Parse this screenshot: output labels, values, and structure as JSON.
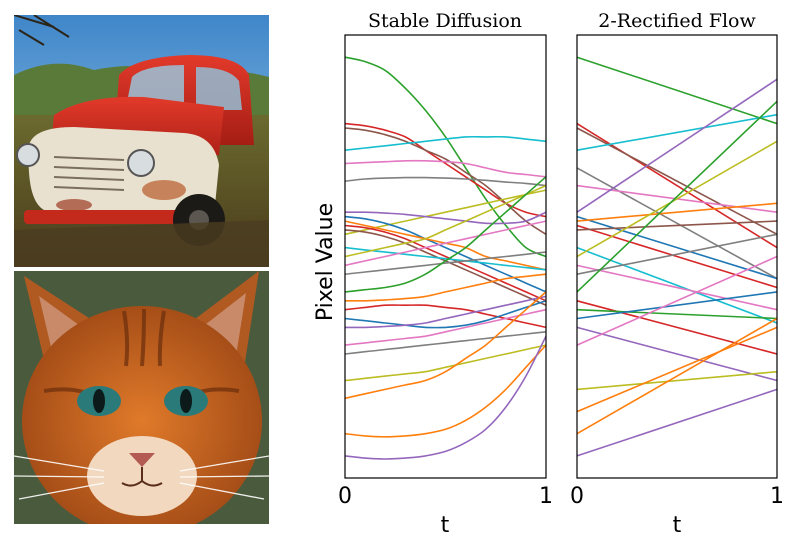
{
  "images": [
    {
      "subject": "red-truck-photo"
    },
    {
      "subject": "orange-cat-photo"
    }
  ],
  "chart_data": [
    {
      "type": "line",
      "title": "Stable Diffusion",
      "xlabel": "t",
      "ylabel": "Pixel Value",
      "xlim": [
        0,
        1
      ],
      "xticks": [
        "0",
        "1"
      ],
      "ylim": [
        0,
        1
      ],
      "grid": false,
      "x": [
        0,
        0.1,
        0.2,
        0.3,
        0.4,
        0.5,
        0.6,
        0.7,
        0.8,
        0.9,
        1
      ],
      "series": [
        {
          "color": "#2ca02c",
          "values": [
            0.95,
            0.94,
            0.92,
            0.88,
            0.83,
            0.77,
            0.7,
            0.63,
            0.57,
            0.52,
            0.5
          ]
        },
        {
          "color": "#d62728",
          "values": [
            0.8,
            0.795,
            0.785,
            0.77,
            0.74,
            0.71,
            0.68,
            0.65,
            0.62,
            0.6,
            0.59
          ]
        },
        {
          "color": "#8c564b",
          "values": [
            0.79,
            0.785,
            0.775,
            0.76,
            0.74,
            0.72,
            0.69,
            0.66,
            0.62,
            0.58,
            0.55
          ]
        },
        {
          "color": "#17becf",
          "values": [
            0.74,
            0.745,
            0.75,
            0.755,
            0.76,
            0.765,
            0.77,
            0.77,
            0.77,
            0.765,
            0.76
          ]
        },
        {
          "color": "#e377c2",
          "values": [
            0.71,
            0.712,
            0.714,
            0.716,
            0.716,
            0.714,
            0.71,
            0.7,
            0.69,
            0.685,
            0.68
          ]
        },
        {
          "color": "#7f7f7f",
          "values": [
            0.67,
            0.675,
            0.677,
            0.678,
            0.678,
            0.677,
            0.675,
            0.672,
            0.668,
            0.665,
            0.66
          ]
        },
        {
          "color": "#bcbd22",
          "values": [
            0.55,
            0.56,
            0.57,
            0.58,
            0.59,
            0.6,
            0.61,
            0.62,
            0.63,
            0.64,
            0.65
          ]
        },
        {
          "color": "#9467bd",
          "values": [
            0.6,
            0.6,
            0.598,
            0.595,
            0.59,
            0.585,
            0.58,
            0.575,
            0.575,
            0.58,
            0.6
          ]
        },
        {
          "color": "#1f77b4",
          "values": [
            0.59,
            0.585,
            0.575,
            0.56,
            0.54,
            0.52,
            0.5,
            0.48,
            0.46,
            0.44,
            0.42
          ]
        },
        {
          "color": "#ff7f0e",
          "values": [
            0.58,
            0.57,
            0.56,
            0.55,
            0.54,
            0.53,
            0.52,
            0.5,
            0.49,
            0.48,
            0.47
          ]
        },
        {
          "color": "#d62728",
          "values": [
            0.57,
            0.565,
            0.555,
            0.54,
            0.52,
            0.5,
            0.48,
            0.46,
            0.44,
            0.42,
            0.4
          ]
        },
        {
          "color": "#8c564b",
          "values": [
            0.56,
            0.555,
            0.545,
            0.53,
            0.51,
            0.49,
            0.47,
            0.45,
            0.43,
            0.41,
            0.39
          ]
        },
        {
          "color": "#17becf",
          "values": [
            0.52,
            0.515,
            0.51,
            0.505,
            0.5,
            0.495,
            0.49,
            0.485,
            0.48,
            0.475,
            0.47
          ]
        },
        {
          "color": "#bcbd22",
          "values": [
            0.5,
            0.51,
            0.52,
            0.53,
            0.54,
            0.56,
            0.58,
            0.6,
            0.62,
            0.64,
            0.66
          ]
        },
        {
          "color": "#e377c2",
          "values": [
            0.48,
            0.49,
            0.5,
            0.51,
            0.52,
            0.53,
            0.54,
            0.55,
            0.56,
            0.57,
            0.58
          ]
        },
        {
          "color": "#7f7f7f",
          "values": [
            0.46,
            0.465,
            0.47,
            0.475,
            0.48,
            0.485,
            0.49,
            0.495,
            0.5,
            0.505,
            0.51
          ]
        },
        {
          "color": "#2ca02c",
          "values": [
            0.42,
            0.425,
            0.43,
            0.44,
            0.46,
            0.49,
            0.52,
            0.56,
            0.6,
            0.64,
            0.68
          ]
        },
        {
          "color": "#ff7f0e",
          "values": [
            0.4,
            0.4,
            0.402,
            0.405,
            0.41,
            0.42,
            0.43,
            0.44,
            0.45,
            0.455,
            0.46
          ]
        },
        {
          "color": "#d62728",
          "values": [
            0.38,
            0.385,
            0.39,
            0.39,
            0.39,
            0.385,
            0.38,
            0.37,
            0.36,
            0.35,
            0.34
          ]
        },
        {
          "color": "#1f77b4",
          "values": [
            0.36,
            0.355,
            0.35,
            0.345,
            0.34,
            0.34,
            0.345,
            0.355,
            0.37,
            0.385,
            0.4
          ]
        },
        {
          "color": "#9467bd",
          "values": [
            0.34,
            0.34,
            0.342,
            0.345,
            0.35,
            0.36,
            0.37,
            0.38,
            0.39,
            0.4,
            0.41
          ]
        },
        {
          "color": "#e377c2",
          "values": [
            0.3,
            0.305,
            0.31,
            0.315,
            0.32,
            0.33,
            0.34,
            0.35,
            0.36,
            0.37,
            0.38
          ]
        },
        {
          "color": "#7f7f7f",
          "values": [
            0.28,
            0.285,
            0.29,
            0.295,
            0.3,
            0.305,
            0.31,
            0.315,
            0.32,
            0.325,
            0.33
          ]
        },
        {
          "color": "#bcbd22",
          "values": [
            0.22,
            0.225,
            0.23,
            0.235,
            0.24,
            0.25,
            0.26,
            0.27,
            0.28,
            0.29,
            0.3
          ]
        },
        {
          "color": "#ff7f0e",
          "values": [
            0.18,
            0.19,
            0.2,
            0.21,
            0.22,
            0.24,
            0.27,
            0.3,
            0.34,
            0.38,
            0.42
          ]
        },
        {
          "color": "#ff7f0e",
          "values": [
            0.1,
            0.095,
            0.093,
            0.095,
            0.1,
            0.11,
            0.13,
            0.16,
            0.2,
            0.25,
            0.3
          ]
        },
        {
          "color": "#9467bd",
          "values": [
            0.05,
            0.045,
            0.043,
            0.045,
            0.05,
            0.06,
            0.08,
            0.11,
            0.16,
            0.23,
            0.32
          ]
        }
      ]
    },
    {
      "type": "line",
      "title": "2-Rectified Flow",
      "xlabel": "t",
      "ylabel": "",
      "xlim": [
        0,
        1
      ],
      "xticks": [
        "0",
        "1"
      ],
      "ylim": [
        0,
        1
      ],
      "grid": false,
      "x": [
        0,
        1
      ],
      "series": [
        {
          "color": "#2ca02c",
          "values": [
            0.95,
            0.8
          ]
        },
        {
          "color": "#d62728",
          "values": [
            0.8,
            0.52
          ]
        },
        {
          "color": "#8c564b",
          "values": [
            0.79,
            0.55
          ]
        },
        {
          "color": "#17becf",
          "values": [
            0.74,
            0.82
          ]
        },
        {
          "color": "#7f7f7f",
          "values": [
            0.7,
            0.45
          ]
        },
        {
          "color": "#e377c2",
          "values": [
            0.66,
            0.6
          ]
        },
        {
          "color": "#9467bd",
          "values": [
            0.6,
            0.9
          ]
        },
        {
          "color": "#1f77b4",
          "values": [
            0.59,
            0.45
          ]
        },
        {
          "color": "#ff7f0e",
          "values": [
            0.58,
            0.62
          ]
        },
        {
          "color": "#d62728",
          "values": [
            0.57,
            0.43
          ]
        },
        {
          "color": "#8c564b",
          "values": [
            0.56,
            0.58
          ]
        },
        {
          "color": "#17becf",
          "values": [
            0.52,
            0.35
          ]
        },
        {
          "color": "#bcbd22",
          "values": [
            0.5,
            0.76
          ]
        },
        {
          "color": "#e377c2",
          "values": [
            0.48,
            0.38
          ]
        },
        {
          "color": "#7f7f7f",
          "values": [
            0.46,
            0.55
          ]
        },
        {
          "color": "#2ca02c",
          "values": [
            0.42,
            0.85
          ]
        },
        {
          "color": "#d62728",
          "values": [
            0.4,
            0.28
          ]
        },
        {
          "color": "#2ca02c",
          "values": [
            0.38,
            0.36
          ]
        },
        {
          "color": "#1f77b4",
          "values": [
            0.36,
            0.42
          ]
        },
        {
          "color": "#9467bd",
          "values": [
            0.34,
            0.22
          ]
        },
        {
          "color": "#e377c2",
          "values": [
            0.3,
            0.5
          ]
        },
        {
          "color": "#bcbd22",
          "values": [
            0.2,
            0.24
          ]
        },
        {
          "color": "#ff7f0e",
          "values": [
            0.15,
            0.34
          ]
        },
        {
          "color": "#ff7f0e",
          "values": [
            0.1,
            0.36
          ]
        },
        {
          "color": "#9467bd",
          "values": [
            0.05,
            0.2
          ]
        }
      ]
    }
  ]
}
